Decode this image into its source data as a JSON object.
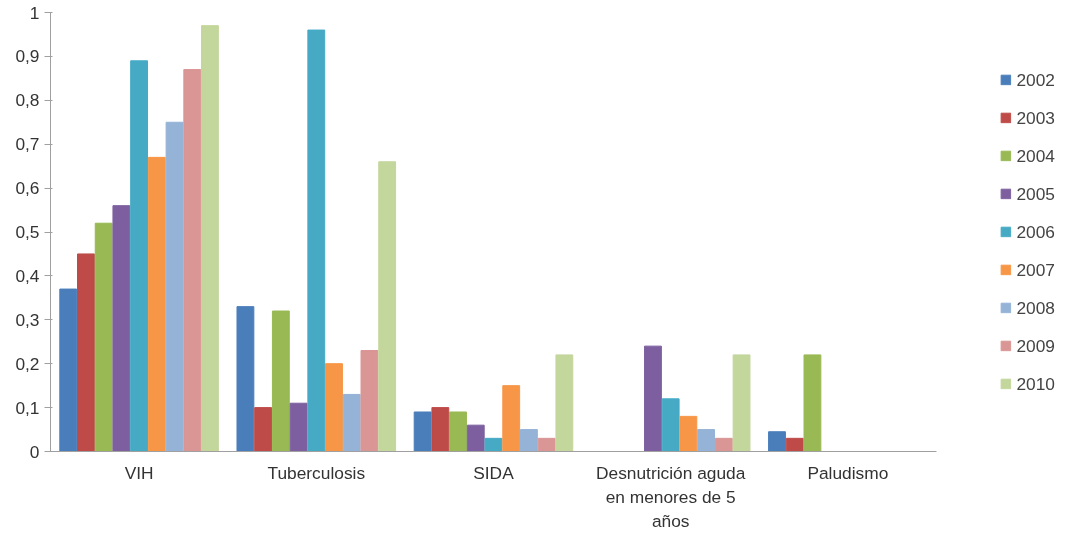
{
  "chart_data": {
    "type": "bar",
    "categories": [
      "VIH",
      "Tuberculosis",
      "SIDA",
      "Desnutrición aguda en menores de 5 años",
      "Paludismo"
    ],
    "series": [
      {
        "name": "2002",
        "color": "#4a7ebb",
        "values": [
          0.37,
          0.33,
          0.09,
          0,
          0.045
        ]
      },
      {
        "name": "2003",
        "color": "#be4b48",
        "values": [
          0.45,
          0.1,
          0.1,
          0,
          0.03
        ]
      },
      {
        "name": "2004",
        "color": "#98b954",
        "values": [
          0.52,
          0.32,
          0.09,
          0,
          0.22
        ]
      },
      {
        "name": "2005",
        "color": "#7d5fa0",
        "values": [
          0.56,
          0.11,
          0.06,
          0.24,
          0
        ]
      },
      {
        "name": "2006",
        "color": "#46aac5",
        "values": [
          0.89,
          0.96,
          0.03,
          0.12,
          0
        ]
      },
      {
        "name": "2007",
        "color": "#f79646",
        "values": [
          0.67,
          0.2,
          0.15,
          0.08,
          0
        ]
      },
      {
        "name": "2008",
        "color": "#95b3d7",
        "values": [
          0.75,
          0.13,
          0.05,
          0.05,
          0
        ]
      },
      {
        "name": "2009",
        "color": "#d99694",
        "values": [
          0.87,
          0.23,
          0.03,
          0.03,
          0
        ]
      },
      {
        "name": "2010",
        "color": "#c3d69b",
        "values": [
          0.97,
          0.66,
          0.22,
          0.22,
          0
        ]
      }
    ],
    "ylim": [
      0,
      1
    ],
    "yticks": [
      {
        "value": 0,
        "label": "0"
      },
      {
        "value": 0.1,
        "label": "0,1"
      },
      {
        "value": 0.2,
        "label": "0,2"
      },
      {
        "value": 0.3,
        "label": "0,3"
      },
      {
        "value": 0.4,
        "label": "0,4"
      },
      {
        "value": 0.5,
        "label": "0,5"
      },
      {
        "value": 0.6,
        "label": "0,6"
      },
      {
        "value": 0.7,
        "label": "0,7"
      },
      {
        "value": 0.8,
        "label": "0,8"
      },
      {
        "value": 0.9,
        "label": "0,9"
      },
      {
        "value": 1,
        "label": "1"
      }
    ],
    "grid": false,
    "legend": "right"
  }
}
